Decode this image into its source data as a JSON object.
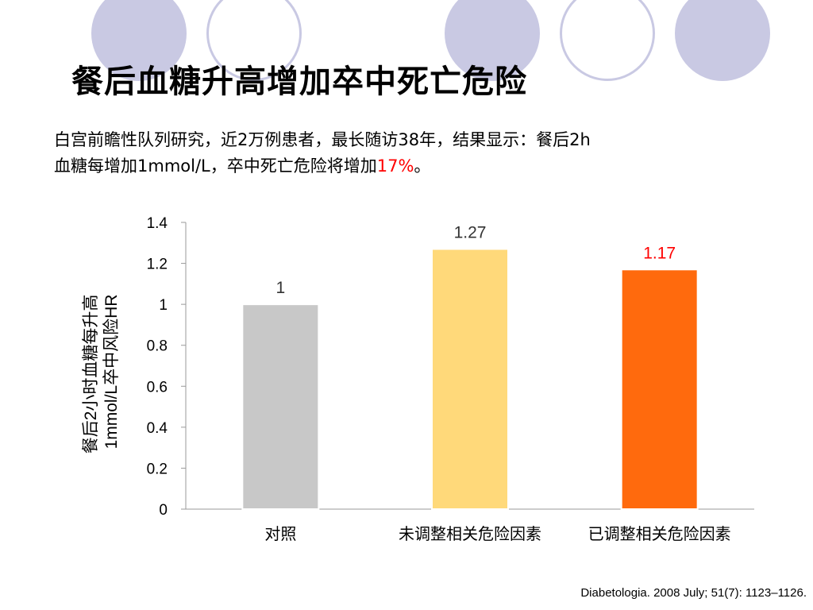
{
  "title": "餐后血糖升高增加卒中死亡危险",
  "intro": {
    "line1": "白宫前瞻性队列研究，近2万例患者，最长随访38年，结果显示：餐后2h",
    "line2_prefix": "血糖每增加1mmol/L，卒中死亡危险将增加",
    "line2_highlight": "17%",
    "line2_suffix": "。"
  },
  "source": "Diabetologia. 2008 July; 51(7): 1123–1126.",
  "colors": {
    "accent_circle": "#c9c9e3",
    "highlight": "#ff0000"
  },
  "chart_data": {
    "type": "bar",
    "categories": [
      "对照",
      "未调整相关危险因素",
      "已调整相关危险因素"
    ],
    "values": [
      1,
      1.27,
      1.17
    ],
    "value_labels": [
      "1",
      "1.27",
      "1.17"
    ],
    "bar_colors": [
      "#c8c8c8",
      "#ffd97a",
      "#ff6a0d"
    ],
    "label_colors": [
      "#333333",
      "#333333",
      "#ff0000"
    ],
    "ylabel_lines": [
      "餐后2小时血糖每升高",
      "1mmol/L卒中风险HR"
    ],
    "xlabel": "",
    "ylim": [
      0,
      1.4
    ],
    "yticks": [
      "0",
      "0.2",
      "0.4",
      "0.6",
      "0.8",
      "1",
      "1.2",
      "1.4"
    ],
    "grid": false
  }
}
